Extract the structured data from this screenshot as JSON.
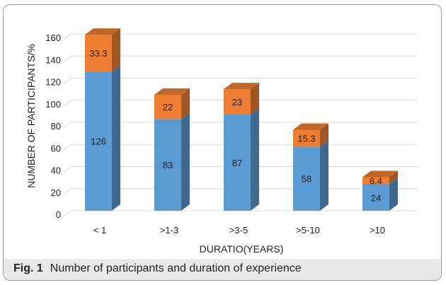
{
  "chart_data": {
    "type": "bar",
    "stacked": true,
    "categories": [
      "< 1",
      ">1-3",
      ">3-5",
      ">5-10",
      ">10"
    ],
    "series": [
      {
        "values": [
          126,
          83,
          87,
          58,
          24
        ],
        "color": "#5b9bd5"
      },
      {
        "values": [
          33.3,
          22,
          23,
          15.3,
          6.4
        ],
        "color": "#ed7d31"
      }
    ],
    "data_labels": [
      [
        "126",
        "83",
        "87",
        "58",
        "24"
      ],
      [
        "33.3",
        "22",
        "23",
        "15.3",
        "6.4"
      ]
    ],
    "xlabel": "DURATIO(YEARS)",
    "ylabel": "NUMBER OF PARTICIPANTS/%",
    "ylim": [
      0,
      160
    ],
    "yticks": [
      0,
      20,
      40,
      60,
      80,
      100,
      120,
      140,
      160
    ],
    "grid": true,
    "legend": "none"
  },
  "caption": {
    "label": "Fig. 1",
    "text": "Number of participants and duration of experience"
  }
}
